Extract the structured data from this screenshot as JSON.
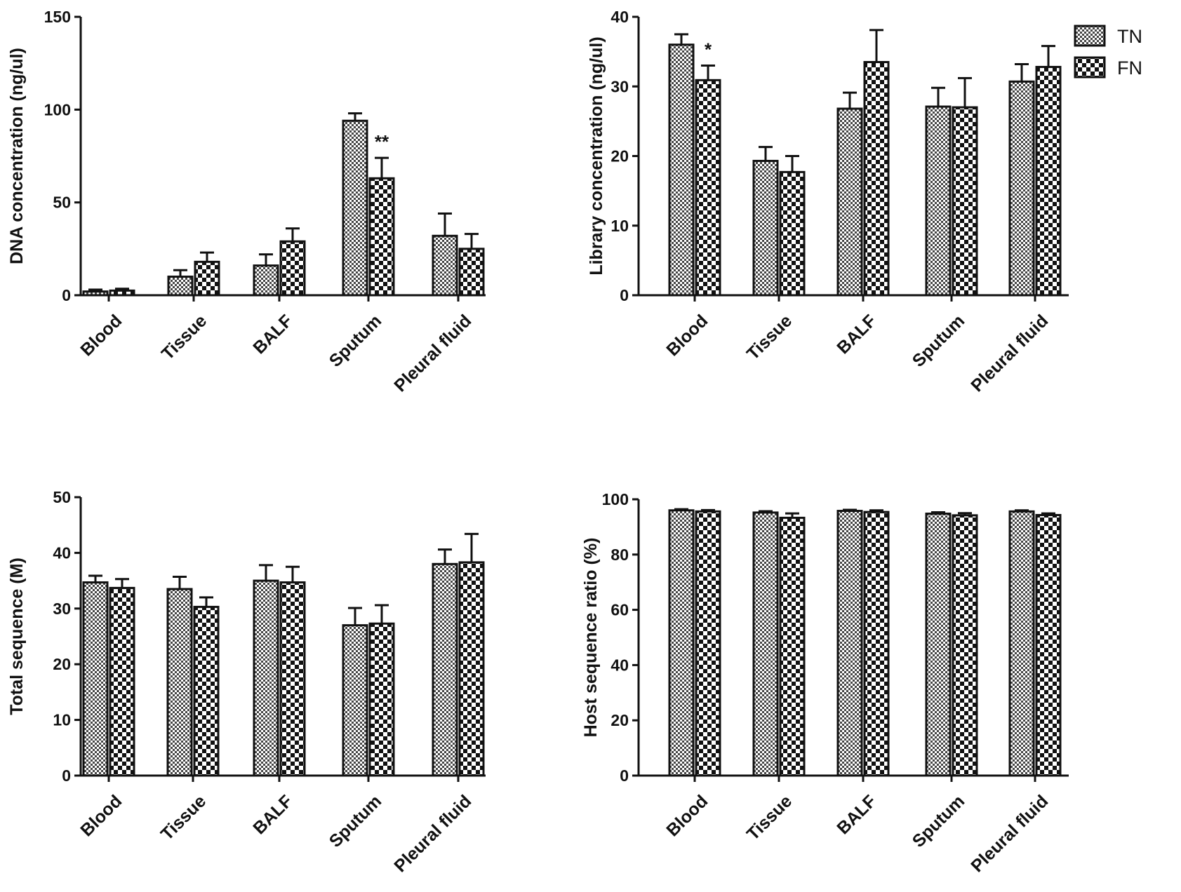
{
  "chart_data": [
    {
      "type": "bar",
      "ylabel": "DNA concentration (ng/ul)",
      "ylim": [
        0,
        150
      ],
      "yticks": [
        0,
        50,
        100,
        150
      ],
      "categories": [
        "Blood",
        "Tissue",
        "BALF",
        "Sputum",
        "Pleural fluid"
      ],
      "series": [
        {
          "name": "TN",
          "values": [
            2,
            10,
            16,
            94,
            32
          ],
          "errors": [
            1,
            3.5,
            6,
            4,
            12
          ]
        },
        {
          "name": "FN",
          "values": [
            2.5,
            18,
            29,
            63,
            25
          ],
          "errors": [
            1,
            5,
            7,
            11,
            8
          ]
        }
      ],
      "annotations": [
        {
          "category": "Sputum",
          "series": "FN",
          "text": "**"
        }
      ]
    },
    {
      "type": "bar",
      "ylabel": "Library concentration (ng/ul)",
      "ylim": [
        0,
        40
      ],
      "yticks": [
        0,
        10,
        20,
        30,
        40
      ],
      "categories": [
        "Blood",
        "Tissue",
        "BALF",
        "Sputum",
        "Pleural fluid"
      ],
      "series": [
        {
          "name": "TN",
          "values": [
            36,
            19.3,
            26.8,
            27.1,
            30.7
          ],
          "errors": [
            1.5,
            2,
            2.3,
            2.7,
            2.5
          ]
        },
        {
          "name": "FN",
          "values": [
            30.9,
            17.7,
            33.5,
            27,
            32.8
          ],
          "errors": [
            2.1,
            2.3,
            4.6,
            4.2,
            3
          ]
        }
      ],
      "annotations": [
        {
          "category": "Blood",
          "series": "FN",
          "text": "*"
        }
      ]
    },
    {
      "type": "bar",
      "ylabel": "Total sequence (M)",
      "ylim": [
        0,
        50
      ],
      "yticks": [
        0,
        10,
        20,
        30,
        40,
        50
      ],
      "categories": [
        "Blood",
        "Tissue",
        "BALF",
        "Sputum",
        "Pleural fluid"
      ],
      "series": [
        {
          "name": "TN",
          "values": [
            34.7,
            33.5,
            35,
            27,
            38
          ],
          "errors": [
            1.2,
            2.2,
            2.8,
            3.1,
            2.6
          ]
        },
        {
          "name": "FN",
          "values": [
            33.7,
            30.3,
            34.7,
            27.3,
            38.3
          ],
          "errors": [
            1.6,
            1.7,
            2.8,
            3.3,
            5.1
          ]
        }
      ],
      "annotations": []
    },
    {
      "type": "bar",
      "ylabel": "Host sequence ratio (%)",
      "ylim": [
        0,
        100
      ],
      "yticks": [
        0,
        20,
        40,
        60,
        80,
        100
      ],
      "categories": [
        "Blood",
        "Tissue",
        "BALF",
        "Sputum",
        "Pleural fluid"
      ],
      "series": [
        {
          "name": "TN",
          "values": [
            96,
            95.2,
            95.8,
            94.8,
            95.6
          ],
          "errors": [
            0.4,
            0.5,
            0.4,
            0.5,
            0.4
          ]
        },
        {
          "name": "FN",
          "values": [
            95.6,
            93.3,
            95.4,
            94.2,
            94.3
          ],
          "errors": [
            0.5,
            1.6,
            0.6,
            0.8,
            0.6
          ]
        }
      ],
      "annotations": []
    }
  ],
  "legend": {
    "items": [
      {
        "label": "TN",
        "pattern": "fine"
      },
      {
        "label": "FN",
        "pattern": "checker"
      }
    ]
  },
  "colors": {
    "ink": "#111111",
    "background": "#ffffff"
  }
}
